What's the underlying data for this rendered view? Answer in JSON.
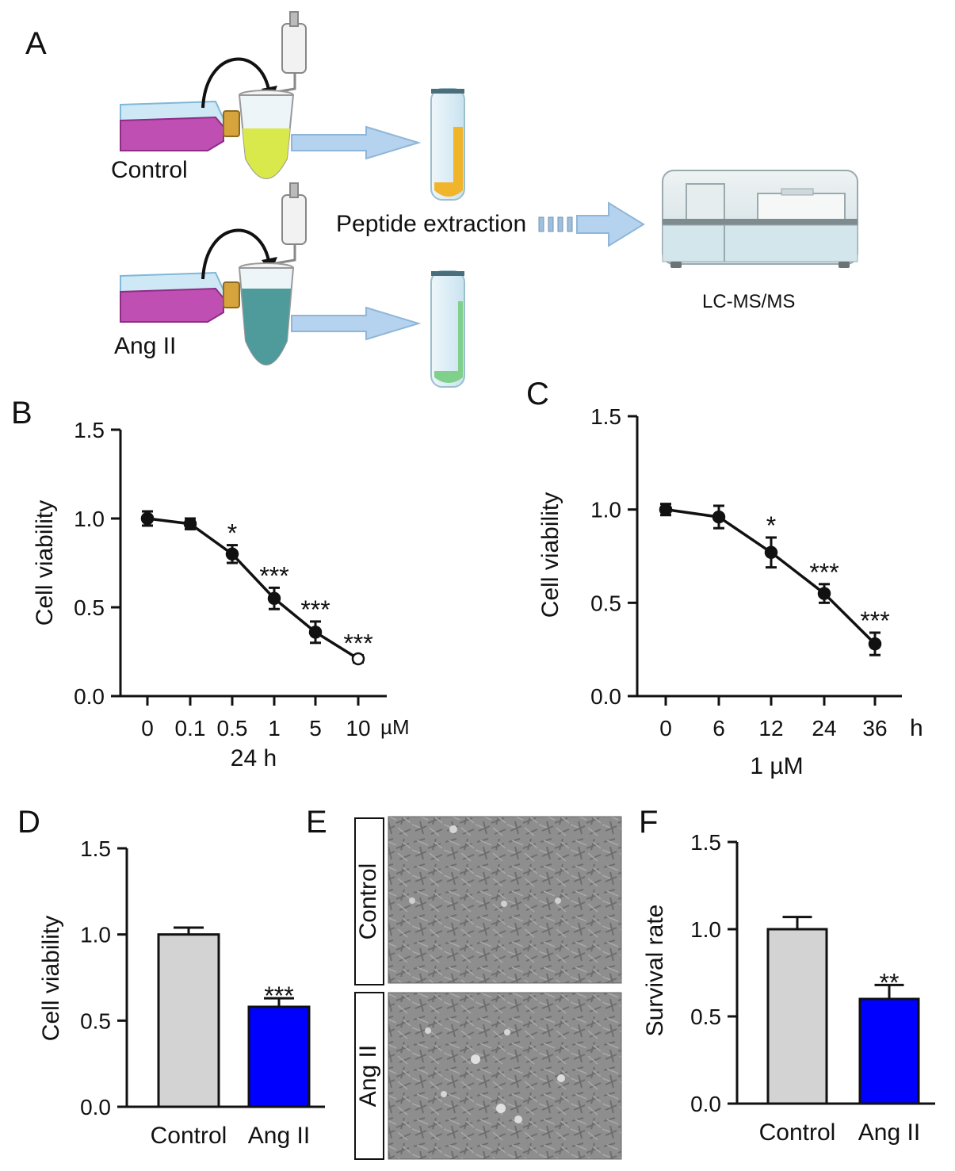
{
  "panels": {
    "a": {
      "letter": "A",
      "control_label": "Control",
      "angii_label": "Ang II",
      "step_label": "Peptide extraction",
      "instrument_label": "LC-MS/MS",
      "colors": {
        "flask_media": "#c04fb4",
        "flask_glass": "#cfe8f5",
        "cap": "#d7a33c",
        "control_liquid": "#d9e84a",
        "angii_liquid": "#4f9a9a",
        "arrow_fill": "#b5d3ef",
        "tube_glass": "#d8ecf5",
        "control_pellet": "#f0b52a",
        "angii_pellet": "#7fd08a"
      }
    },
    "b": {
      "letter": "B"
    },
    "c": {
      "letter": "C"
    },
    "d": {
      "letter": "D"
    },
    "e": {
      "letter": "E",
      "row_labels": [
        "Control",
        "Ang II"
      ]
    },
    "f": {
      "letter": "F"
    }
  },
  "chart_data": [
    {
      "id": "B",
      "type": "line",
      "categories": [
        "0",
        "0.1",
        "0.5",
        "1",
        "5",
        "10"
      ],
      "unit_label": "µM",
      "xlabel": "24 h",
      "ylabel": "Cell viability",
      "ylim": [
        0,
        1.5
      ],
      "yticks": [
        "0.0",
        "0.5",
        "1.0",
        "1.5"
      ],
      "values": [
        1.0,
        0.97,
        0.8,
        0.55,
        0.36,
        0.21
      ],
      "errors": [
        0.04,
        0.03,
        0.05,
        0.06,
        0.06,
        0.02
      ],
      "significance": [
        "",
        "",
        "*",
        "***",
        "***",
        "***"
      ]
    },
    {
      "id": "C",
      "type": "line",
      "categories": [
        "0",
        "6",
        "12",
        "24",
        "36"
      ],
      "unit_label": "h",
      "xlabel": "1 µM",
      "ylabel": "Cell viability",
      "ylim": [
        0,
        1.5
      ],
      "yticks": [
        "0.0",
        "0.5",
        "1.0",
        "1.5"
      ],
      "values": [
        1.0,
        0.96,
        0.77,
        0.55,
        0.28
      ],
      "errors": [
        0.03,
        0.06,
        0.08,
        0.05,
        0.06
      ],
      "significance": [
        "",
        "",
        "*",
        "***",
        "***"
      ]
    },
    {
      "id": "D",
      "type": "bar",
      "categories": [
        "Control",
        "Ang II"
      ],
      "ylabel": "Cell viability",
      "ylim": [
        0,
        1.5
      ],
      "yticks": [
        "0.0",
        "0.5",
        "1.0",
        "1.5"
      ],
      "values": [
        1.0,
        0.58
      ],
      "errors": [
        0.04,
        0.05
      ],
      "colors": [
        "#d3d3d3",
        "#0000ff"
      ],
      "significance": [
        "",
        "***"
      ]
    },
    {
      "id": "F",
      "type": "bar",
      "categories": [
        "Control",
        "Ang II"
      ],
      "ylabel": "Survival rate",
      "ylim": [
        0,
        1.5
      ],
      "yticks": [
        "0.0",
        "0.5",
        "1.0",
        "1.5"
      ],
      "values": [
        1.0,
        0.6
      ],
      "errors": [
        0.07,
        0.08
      ],
      "colors": [
        "#d3d3d3",
        "#0000ff"
      ],
      "significance": [
        "",
        "**"
      ]
    }
  ]
}
